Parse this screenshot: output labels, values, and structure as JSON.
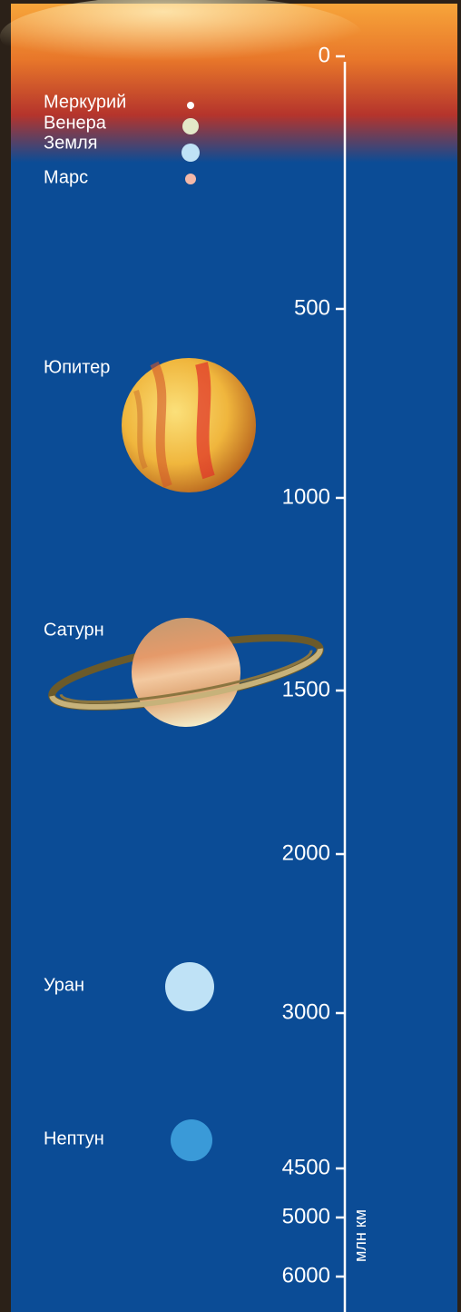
{
  "scale": {
    "ticks": [
      0,
      500,
      1000,
      1500,
      2000,
      3000,
      4500,
      5000,
      6000
    ],
    "unit": "млн км"
  },
  "planets": [
    {
      "label": "Меркурий"
    },
    {
      "label": "Венера"
    },
    {
      "label": "Земля"
    },
    {
      "label": "Марс"
    },
    {
      "label": "Юпитер"
    },
    {
      "label": "Сатурн"
    },
    {
      "label": "Уран"
    },
    {
      "label": "Нептун"
    }
  ]
}
